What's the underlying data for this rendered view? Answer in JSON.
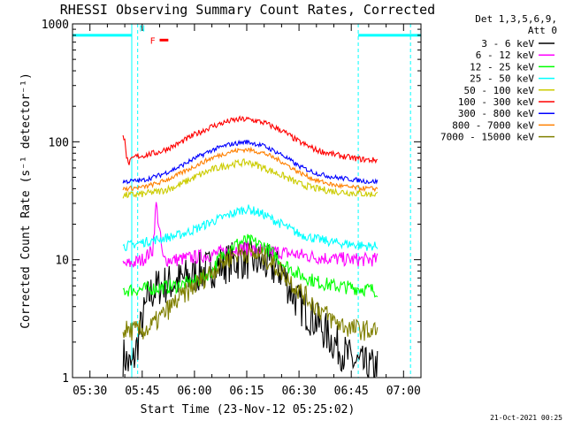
{
  "chart_data": {
    "type": "line",
    "title": "RHESSI Observing Summary Count Rates, Corrected",
    "xlabel": "Start Time (23-Nov-12 05:25:02)",
    "ylabel": "Corrected Count Rate (s⁻¹ detector⁻¹)",
    "x_unit": "minutes after 05:25:02",
    "x_range": [
      0,
      100
    ],
    "ylim": [
      1,
      1000
    ],
    "y_scale": "log",
    "x_ticks": [
      {
        "t": 5,
        "label": "05:30"
      },
      {
        "t": 20,
        "label": "05:45"
      },
      {
        "t": 35,
        "label": "06:00"
      },
      {
        "t": 50,
        "label": "06:15"
      },
      {
        "t": 65,
        "label": "06:30"
      },
      {
        "t": 80,
        "label": "06:45"
      },
      {
        "t": 95,
        "label": "07:00"
      }
    ],
    "y_ticks": [
      {
        "v": 1,
        "label": "1"
      },
      {
        "v": 10,
        "label": "10"
      },
      {
        "v": 100,
        "label": "100"
      },
      {
        "v": 1000,
        "label": "1000"
      }
    ],
    "data_window": [
      14.5,
      87.5
    ],
    "series": [
      {
        "name": "3 - 6 keV",
        "color": "#000000",
        "x": [
          15,
          16,
          17,
          18,
          20,
          22,
          25,
          30,
          35,
          40,
          45,
          48,
          50,
          52,
          55,
          60,
          62,
          65,
          70,
          75,
          78,
          80,
          82,
          85,
          87
        ],
        "y": [
          1.5,
          1.3,
          1.2,
          1.6,
          3,
          5,
          6,
          6.5,
          7.5,
          8.5,
          9.5,
          10,
          10,
          9.8,
          9.2,
          8,
          6,
          4.2,
          3,
          2,
          1.6,
          1.4,
          1.3,
          1.2,
          1.2
        ]
      },
      {
        "name": "6 - 12 keV",
        "color": "#ff00ff",
        "x": [
          15,
          18,
          20,
          23,
          24,
          26,
          30,
          35,
          40,
          45,
          48,
          50,
          52,
          55,
          60,
          65,
          70,
          75,
          80,
          85,
          87
        ],
        "y": [
          9,
          9.5,
          10,
          12,
          30,
          10,
          10,
          10.5,
          11,
          12,
          12.5,
          12.5,
          12.2,
          12,
          11.5,
          11,
          10.5,
          10.2,
          10,
          10,
          10
        ]
      },
      {
        "name": "12 - 25 keV",
        "color": "#00ff00",
        "x": [
          15,
          20,
          25,
          30,
          35,
          40,
          42,
          45,
          48,
          50,
          52,
          55,
          58,
          60,
          65,
          70,
          75,
          80,
          85,
          87
        ],
        "y": [
          5.5,
          5.6,
          5.8,
          6,
          6.5,
          8,
          10,
          12.5,
          14,
          14.5,
          14,
          13,
          11,
          9.5,
          7.5,
          6.5,
          6,
          5.8,
          5.6,
          5.5
        ]
      },
      {
        "name": "25 - 50 keV",
        "color": "#00ffff",
        "x": [
          15,
          20,
          25,
          30,
          35,
          40,
          45,
          48,
          50,
          52,
          55,
          60,
          65,
          70,
          75,
          80,
          85,
          87
        ],
        "y": [
          13,
          14,
          15,
          16,
          18,
          21,
          24,
          26,
          27,
          26,
          24,
          20,
          16.5,
          15,
          14,
          13.5,
          13,
          13
        ]
      },
      {
        "name": "50 - 100 keV",
        "color": "#cccc00",
        "x": [
          15,
          20,
          25,
          30,
          35,
          40,
          45,
          48,
          50,
          52,
          55,
          60,
          65,
          70,
          75,
          80,
          85,
          87
        ],
        "y": [
          35,
          36,
          38,
          42,
          50,
          58,
          64,
          66,
          67,
          65,
          60,
          52,
          44,
          40,
          38,
          37,
          36,
          36
        ]
      },
      {
        "name": "100 - 300 keV",
        "color": "#ff0000",
        "x": [
          15,
          15.5,
          16,
          17,
          18,
          20,
          25,
          30,
          35,
          40,
          45,
          48,
          50,
          52,
          55,
          60,
          65,
          70,
          75,
          80,
          85,
          87
        ],
        "y": [
          110,
          75,
          65,
          70,
          75,
          76,
          82,
          95,
          115,
          135,
          150,
          155,
          155,
          152,
          145,
          125,
          100,
          85,
          78,
          73,
          70,
          70
        ]
      },
      {
        "name": "300 - 800 keV",
        "color": "#0000ff",
        "x": [
          15,
          20,
          25,
          30,
          35,
          40,
          45,
          48,
          50,
          52,
          55,
          60,
          65,
          70,
          75,
          80,
          85,
          87
        ],
        "y": [
          46,
          47,
          52,
          60,
          72,
          85,
          95,
          98,
          100,
          97,
          92,
          78,
          62,
          54,
          50,
          48,
          46,
          46
        ]
      },
      {
        "name": "800 - 7000 keV",
        "color": "#ff8000",
        "x": [
          15,
          20,
          25,
          30,
          35,
          40,
          45,
          48,
          50,
          52,
          55,
          60,
          65,
          70,
          75,
          80,
          85,
          87
        ],
        "y": [
          40,
          41,
          45,
          52,
          62,
          73,
          82,
          85,
          86,
          84,
          80,
          68,
          55,
          47,
          43,
          41,
          40,
          40
        ]
      },
      {
        "name": "7000 - 15000 keV",
        "color": "#808000",
        "x": [
          15,
          20,
          22,
          25,
          30,
          35,
          40,
          45,
          48,
          50,
          52,
          55,
          60,
          65,
          70,
          75,
          80,
          85,
          87
        ],
        "y": [
          2.5,
          2.5,
          2.6,
          3.2,
          4.5,
          6,
          8,
          10.5,
          11.5,
          11.5,
          11,
          10.5,
          8,
          5.5,
          4,
          3,
          2.6,
          2.5,
          2.5
        ]
      }
    ],
    "legend_header": [
      "Det 1,3,5,6,9,",
      "Att 0"
    ],
    "legend_placement": "right",
    "attenuator_level": {
      "color": "#00ffff",
      "value": 800,
      "segments": [
        [
          0,
          17
        ],
        [
          82,
          100
        ]
      ]
    },
    "attenuator_markers": [
      {
        "t": 17,
        "style": "solid",
        "color": "#00ffff"
      },
      {
        "t": 18.7,
        "style": "dashed",
        "color": "#00ffff"
      },
      {
        "t": 82,
        "style": "dashed",
        "color": "#00ffff"
      },
      {
        "t": 97,
        "style": "dashed",
        "color": "#00ffff"
      }
    ],
    "flags": [
      {
        "label": "N",
        "t": 20,
        "v": 860,
        "color": "#00ffff"
      },
      {
        "label": "F",
        "t": 23,
        "v": 680,
        "color": "#ff0000",
        "bar_t": [
          25,
          27.5
        ],
        "bar_v": 680
      }
    ]
  },
  "footer": {
    "timestamp": "21-Oct-2021 00:25"
  }
}
